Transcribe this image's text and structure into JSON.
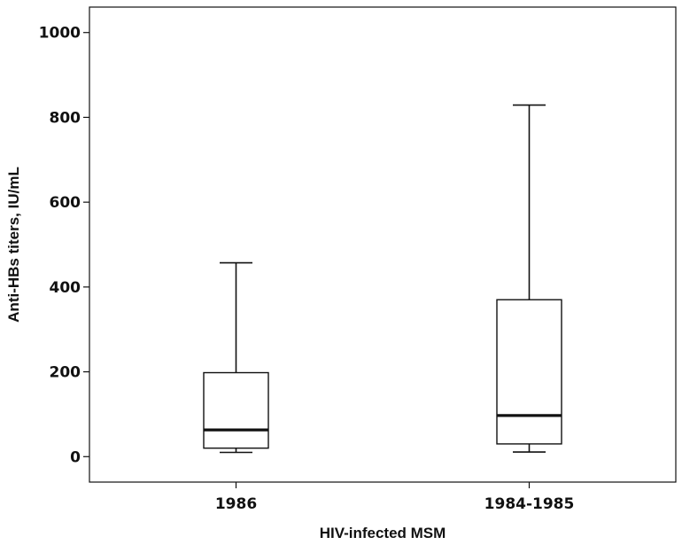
{
  "chart_data": {
    "type": "box",
    "xlabel": "HIV-infected MSM",
    "ylabel": "Anti-HBs titers, IU/mL",
    "ylim": [
      -60,
      1060
    ],
    "yticks": [
      0,
      200,
      400,
      600,
      800,
      1000
    ],
    "grid": false,
    "categories": [
      "1986",
      "1984-1985"
    ],
    "boxes": [
      {
        "category": "1986",
        "min": 10,
        "q1": 20,
        "median": 63,
        "q3": 198,
        "max": 457
      },
      {
        "category": "1984-1985",
        "min": 11,
        "q1": 30,
        "median": 97,
        "q3": 370,
        "max": 829
      }
    ]
  },
  "colors": {
    "line": "#111111",
    "box_fill": "#ffffff",
    "background": "#ffffff"
  }
}
